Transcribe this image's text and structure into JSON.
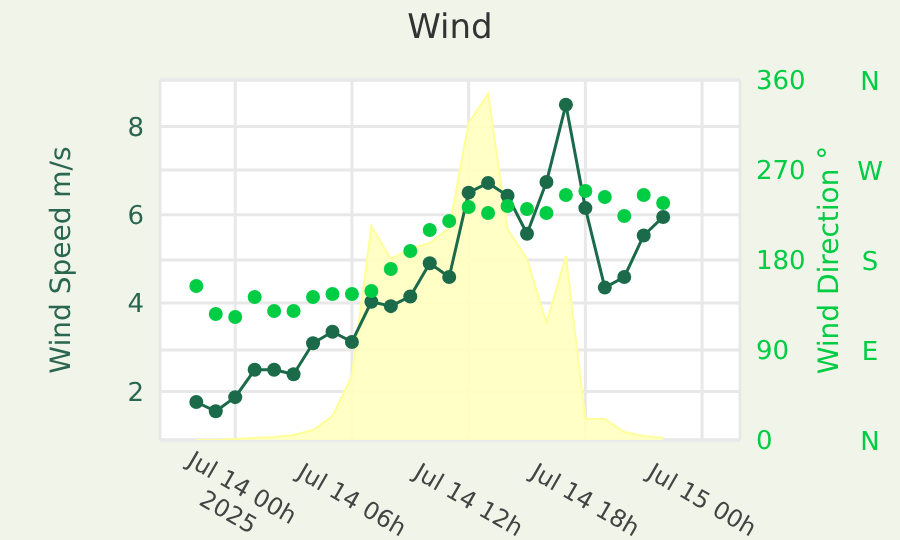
{
  "chart_data": {
    "type": "line",
    "title": "Wind",
    "ylabel": "Wind Speed m/s",
    "y2label": "Wind Direction °",
    "x": [
      "2025-07-13T22:00",
      "2025-07-13T23:00",
      "2025-07-14T00:00",
      "2025-07-14T01:00",
      "2025-07-14T02:00",
      "2025-07-14T03:00",
      "2025-07-14T04:00",
      "2025-07-14T05:00",
      "2025-07-14T06:00",
      "2025-07-14T07:00",
      "2025-07-14T08:00",
      "2025-07-14T09:00",
      "2025-07-14T10:00",
      "2025-07-14T11:00",
      "2025-07-14T12:00",
      "2025-07-14T13:00",
      "2025-07-14T14:00",
      "2025-07-14T15:00",
      "2025-07-14T16:00",
      "2025-07-14T17:00",
      "2025-07-14T18:00",
      "2025-07-14T19:00",
      "2025-07-14T20:00",
      "2025-07-14T21:00",
      "2025-07-14T22:00"
    ],
    "series": [
      {
        "type": "area",
        "axis": "y2",
        "color": "#ffffc0",
        "values": [
          0,
          0,
          1,
          2,
          3,
          5,
          10,
          24,
          64,
          214,
          181,
          191,
          197,
          212,
          317,
          346,
          211,
          181,
          117,
          184,
          21,
          21,
          8,
          4,
          2
        ]
      },
      {
        "color": "#1b6b4b",
        "marker": "circle",
        "values": [
          1.76,
          1.55,
          1.87,
          2.49,
          2.49,
          2.39,
          3.09,
          3.35,
          3.12,
          4.03,
          3.93,
          4.15,
          4.9,
          4.59,
          6.5,
          6.72,
          6.43,
          5.57,
          6.74,
          8.49,
          6.15,
          4.35,
          4.59,
          5.53,
          5.95
        ]
      },
      {
        "type": "scatter",
        "axis": "y2",
        "color": "#00cc44",
        "marker": "circle",
        "values": [
          154,
          126,
          123,
          143,
          129,
          129,
          143,
          146,
          146,
          149,
          171,
          189,
          210,
          219,
          233,
          227,
          234,
          231,
          227,
          245,
          249,
          243,
          224,
          245,
          237
        ]
      }
    ],
    "xlim": [
      "2025-07-13T20:08",
      "2025-07-15T01:57"
    ],
    "xticks": [
      {
        "value": "2025-07-14T00:00",
        "label": "Jul 14 00h\n2025"
      },
      {
        "value": "2025-07-14T06:00",
        "label": "Jul 14 06h"
      },
      {
        "value": "2025-07-14T12:00",
        "label": "Jul 14 12h"
      },
      {
        "value": "2025-07-14T18:00",
        "label": "Jul 14 18h"
      },
      {
        "value": "2025-07-15T00:00",
        "label": "Jul 15 00h"
      }
    ],
    "ylim": [
      0.9,
      9.05
    ],
    "yticks": [
      2,
      4,
      6,
      8
    ],
    "y2lim": [
      0,
      360
    ],
    "y2ticks": [
      0,
      90,
      180,
      270,
      360
    ],
    "annotations": [
      "N",
      "W",
      "S",
      "E",
      "N"
    ],
    "grid": true
  }
}
